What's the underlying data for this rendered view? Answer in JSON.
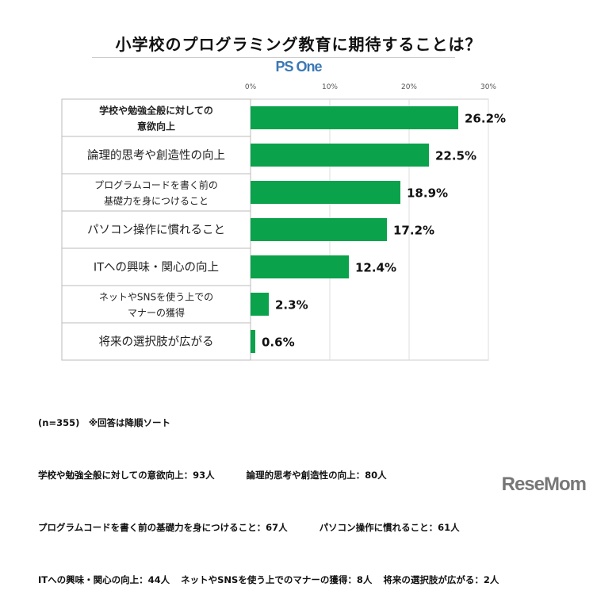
{
  "chart_data": {
    "type": "bar",
    "orientation": "horizontal",
    "title": "小学校のプログラミング教育に期待することは？",
    "categories": [
      "学校や勉強全般に対しての\n意欲向上",
      "論理的思考や創造性の向上",
      "プログラムコードを書く前の\n基礎力を身につけること",
      "パソコン操作に慣れること",
      "ITへの興味・関心の向上",
      "ネットやSNSを使う上での\nマナーの獲得",
      "将来の選択肢が広がる"
    ],
    "values": [
      26.2,
      22.5,
      18.9,
      17.2,
      12.4,
      2.3,
      0.6
    ],
    "data_labels": [
      "26.2%",
      "22.5%",
      "18.9%",
      "17.2%",
      "12.4%",
      "2.3%",
      "0.6%"
    ],
    "xlim": [
      0,
      30
    ],
    "ticks": [
      "0%",
      "10%",
      "20%",
      "30%"
    ],
    "tick_values": [
      0,
      10,
      20,
      30
    ],
    "grid": true,
    "bar_color": "#0aa24a"
  },
  "brand": "PS One",
  "notes": {
    "sample": "(n=355)　※回答は降順ソート",
    "lines": [
      [
        "学校や勉強全般に対しての意欲向上：93人",
        "論理的思考や創造性の向上：80人"
      ],
      [
        "プログラムコードを書く前の基礎力を身につけること：67人",
        "パソコン操作に慣れること：61人"
      ],
      [
        "ITへの興味・関心の向上：44人",
        "ネットやSNSを使う上でのマナーの獲得：8人",
        "将来の選択肢が広がる：2人"
      ]
    ]
  },
  "logo": "ReseMom"
}
